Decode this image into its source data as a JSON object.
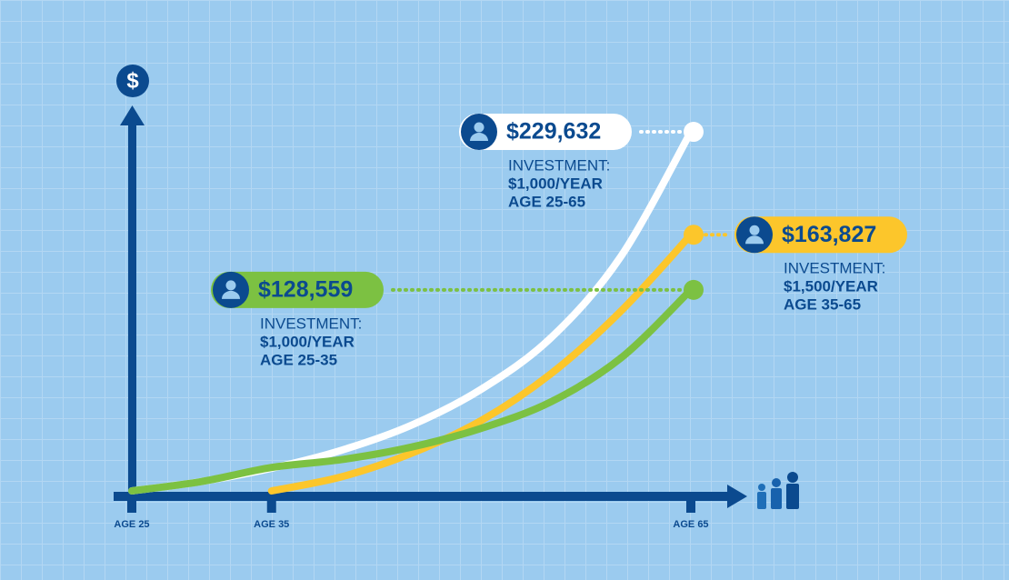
{
  "chart_data": {
    "type": "line",
    "ylabel": "$",
    "x": [
      25,
      30,
      35,
      40,
      45,
      50,
      55,
      60,
      65
    ],
    "xlim": [
      25,
      65
    ],
    "xticks": [
      {
        "value": 25,
        "label": "AGE 25"
      },
      {
        "value": 35,
        "label": "AGE 35"
      },
      {
        "value": 65,
        "label": "AGE 65"
      }
    ],
    "ylim": [
      0,
      250000
    ],
    "series": [
      {
        "color": "#ffffff",
        "label_side": "left",
        "values": [
          0,
          6000,
          14500,
          26000,
          42000,
          65000,
          98000,
          150000,
          229632
        ],
        "value_labels": [
          null,
          null,
          null,
          null,
          null,
          null,
          null,
          null,
          "$229,632"
        ],
        "annotation": [
          "INVESTMENT:",
          "$1,000/YEAR",
          "AGE 25-65"
        ]
      },
      {
        "color": "#fcc62b",
        "label_side": "right",
        "values": [
          null,
          null,
          0,
          9000,
          24000,
          45000,
          75000,
          115000,
          163827
        ],
        "value_labels": [
          null,
          null,
          null,
          null,
          null,
          null,
          null,
          null,
          "$163,827"
        ],
        "annotation": [
          "INVESTMENT:",
          "$1,500/YEAR",
          "AGE 35-65"
        ]
      },
      {
        "color": "#7cc142",
        "label_side": "left",
        "values": [
          0,
          6000,
          15000,
          20000,
          28000,
          40000,
          57000,
          85000,
          128559
        ],
        "value_labels": [
          null,
          null,
          null,
          null,
          null,
          null,
          null,
          null,
          "$128,559"
        ],
        "annotation": [
          "INVESTMENT:",
          "$1,000/YEAR",
          "AGE 25-35"
        ]
      }
    ]
  }
}
